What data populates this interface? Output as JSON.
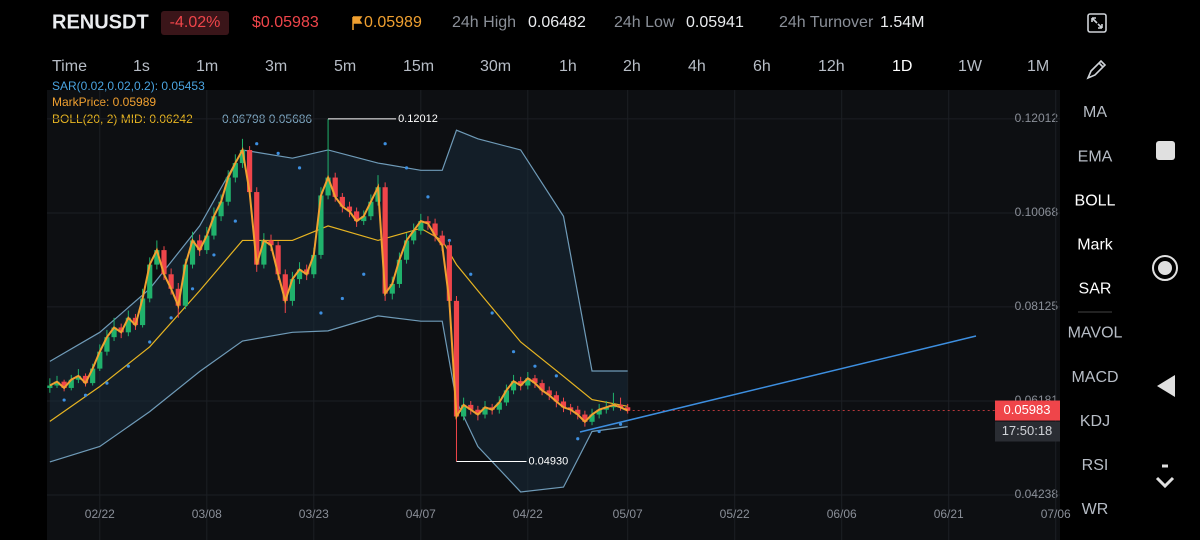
{
  "header": {
    "symbol": "RENUSDT",
    "change": "-4.02%",
    "last": "$0.05983",
    "mark": "0.05989",
    "high_label": "24h High",
    "high": "0.06482",
    "low_label": "24h Low",
    "low": "0.05941",
    "turnover_label": "24h Turnover",
    "turnover": "1.54M"
  },
  "timeframes": [
    "Time",
    "1s",
    "1m",
    "3m",
    "5m",
    "15m",
    "30m",
    "1h",
    "2h",
    "4h",
    "6h",
    "12h",
    "1D",
    "1W",
    "1M"
  ],
  "indicators": {
    "sar": "SAR(0.02,0.02,0.2): 0.05453",
    "mark": "MarkPrice: 0.05989",
    "boll": "BOLL(20, 2) MID: 0.06242",
    "boll_bands": "0.06798 0.05686"
  },
  "menu": [
    "MA",
    "EMA",
    "BOLL",
    "Mark",
    "SAR",
    "MAVOL",
    "MACD",
    "KDJ",
    "RSI",
    "WR"
  ],
  "chart_data": {
    "type": "candlestick",
    "xlim": [
      -0.4,
      141.6
    ],
    "ylim": [
      0.0403,
      0.1261
    ],
    "yticks": [
      0.12012,
      0.10068,
      0.08125,
      0.06181,
      0.04238
    ],
    "xticks": [
      {
        "value": 7,
        "label": "02/22"
      },
      {
        "value": 22,
        "label": "03/08"
      },
      {
        "value": 37,
        "label": "03/23"
      },
      {
        "value": 52,
        "label": "04/07"
      },
      {
        "value": 67,
        "label": "04/22"
      },
      {
        "value": 81,
        "label": "05/07"
      },
      {
        "value": 96,
        "label": "05/22"
      },
      {
        "value": 111,
        "label": "06/06"
      },
      {
        "value": 126,
        "label": "06/21"
      },
      {
        "value": 141,
        "label": "07/06"
      }
    ],
    "up_color": "#20b26c",
    "down_color": "#ef454a",
    "grid": true,
    "candles": [
      [
        0.0645,
        0.0665,
        0.0635,
        0.065
      ],
      [
        0.065,
        0.067,
        0.0645,
        0.0658
      ],
      [
        0.0658,
        0.0662,
        0.0638,
        0.0645
      ],
      [
        0.0645,
        0.0672,
        0.064,
        0.0662
      ],
      [
        0.0662,
        0.0684,
        0.0655,
        0.067
      ],
      [
        0.067,
        0.0675,
        0.0648,
        0.0655
      ],
      [
        0.0655,
        0.0695,
        0.065,
        0.0685
      ],
      [
        0.0685,
        0.0735,
        0.068,
        0.072
      ],
      [
        0.072,
        0.0765,
        0.0712,
        0.075
      ],
      [
        0.075,
        0.079,
        0.0742,
        0.077
      ],
      [
        0.077,
        0.0778,
        0.0748,
        0.076
      ],
      [
        0.076,
        0.0805,
        0.0752,
        0.079
      ],
      [
        0.079,
        0.0798,
        0.0765,
        0.0775
      ],
      [
        0.0775,
        0.085,
        0.077,
        0.083
      ],
      [
        0.083,
        0.0915,
        0.0822,
        0.09
      ],
      [
        0.09,
        0.095,
        0.089,
        0.093
      ],
      [
        0.093,
        0.0938,
        0.0868,
        0.088
      ],
      [
        0.088,
        0.0892,
        0.0838,
        0.085
      ],
      [
        0.085,
        0.0862,
        0.079,
        0.0815
      ],
      [
        0.0815,
        0.0912,
        0.0808,
        0.09
      ],
      [
        0.09,
        0.0968,
        0.0892,
        0.095
      ],
      [
        0.095,
        0.0962,
        0.0918,
        0.093
      ],
      [
        0.093,
        0.0978,
        0.0922,
        0.096
      ],
      [
        0.096,
        0.1018,
        0.0952,
        0.1
      ],
      [
        0.1,
        0.1045,
        0.099,
        0.103
      ],
      [
        0.103,
        0.1095,
        0.1022,
        0.108
      ],
      [
        0.108,
        0.1128,
        0.107,
        0.111
      ],
      [
        0.111,
        0.116,
        0.11,
        0.1137
      ],
      [
        0.1137,
        0.1145,
        0.104,
        0.105
      ],
      [
        0.105,
        0.106,
        0.0885,
        0.09
      ],
      [
        0.09,
        0.0965,
        0.0892,
        0.095
      ],
      [
        0.095,
        0.0962,
        0.0928,
        0.094
      ],
      [
        0.094,
        0.0948,
        0.0868,
        0.088
      ],
      [
        0.088,
        0.089,
        0.08,
        0.0825
      ],
      [
        0.0825,
        0.0885,
        0.0815,
        0.087
      ],
      [
        0.087,
        0.0905,
        0.086,
        0.089
      ],
      [
        0.089,
        0.09,
        0.0868,
        0.088
      ],
      [
        0.088,
        0.0935,
        0.0872,
        0.092
      ],
      [
        0.092,
        0.106,
        0.0912,
        0.1043
      ],
      [
        0.1043,
        0.12012,
        0.1035,
        0.108
      ],
      [
        0.108,
        0.109,
        0.103,
        0.104
      ],
      [
        0.104,
        0.1048,
        0.1008,
        0.102
      ],
      [
        0.102,
        0.103,
        0.0998,
        0.101
      ],
      [
        0.101,
        0.1018,
        0.0978,
        0.099
      ],
      [
        0.099,
        0.1012,
        0.0982,
        0.1
      ],
      [
        0.1,
        0.1045,
        0.0992,
        0.103
      ],
      [
        0.103,
        0.1085,
        0.1022,
        0.106
      ],
      [
        0.106,
        0.107,
        0.0825,
        0.084
      ],
      [
        0.084,
        0.0875,
        0.0828,
        0.086
      ],
      [
        0.086,
        0.0925,
        0.0852,
        0.091
      ],
      [
        0.091,
        0.0965,
        0.0902,
        0.095
      ],
      [
        0.095,
        0.0985,
        0.0942,
        0.097
      ],
      [
        0.097,
        0.1005,
        0.0962,
        0.099
      ],
      [
        0.099,
        0.1,
        0.0972,
        0.0985
      ],
      [
        0.0985,
        0.0995,
        0.0948,
        0.096
      ],
      [
        0.096,
        0.097,
        0.0928,
        0.094
      ],
      [
        0.094,
        0.095,
        0.0812,
        0.0825
      ],
      [
        0.0825,
        0.0835,
        0.0493,
        0.0586
      ],
      [
        0.0586,
        0.0625,
        0.0578,
        0.061
      ],
      [
        0.061,
        0.0618,
        0.059,
        0.06
      ],
      [
        0.06,
        0.0608,
        0.0578,
        0.059
      ],
      [
        0.059,
        0.0618,
        0.0582,
        0.0605
      ],
      [
        0.0605,
        0.0612,
        0.059,
        0.06
      ],
      [
        0.06,
        0.0628,
        0.0592,
        0.0615
      ],
      [
        0.0615,
        0.0652,
        0.0608,
        0.064
      ],
      [
        0.064,
        0.0672,
        0.0632,
        0.0659
      ],
      [
        0.0659,
        0.0668,
        0.064,
        0.065
      ],
      [
        0.065,
        0.0678,
        0.0642,
        0.0665
      ],
      [
        0.0665,
        0.0672,
        0.0645,
        0.0655
      ],
      [
        0.0655,
        0.0662,
        0.063,
        0.064
      ],
      [
        0.064,
        0.0648,
        0.062,
        0.063
      ],
      [
        0.063,
        0.0638,
        0.0605,
        0.0617
      ],
      [
        0.0617,
        0.0625,
        0.0595,
        0.0605
      ],
      [
        0.0605,
        0.0612,
        0.059,
        0.06
      ],
      [
        0.06,
        0.0608,
        0.058,
        0.059
      ],
      [
        0.059,
        0.0598,
        0.0565,
        0.0575
      ],
      [
        0.0575,
        0.0602,
        0.0568,
        0.059
      ],
      [
        0.059,
        0.0612,
        0.0582,
        0.06
      ],
      [
        0.06,
        0.0618,
        0.0592,
        0.0605
      ],
      [
        0.0605,
        0.0635,
        0.0598,
        0.061
      ],
      [
        0.061,
        0.0625,
        0.0598,
        0.0605
      ],
      [
        0.0605,
        0.0612,
        0.0592,
        0.05983
      ]
    ],
    "boll": {
      "x": [
        0,
        7,
        14,
        21,
        27,
        34,
        39,
        46,
        52,
        55,
        57,
        60,
        66,
        72,
        76,
        81
      ],
      "upper": [
        0.07,
        0.076,
        0.085,
        0.098,
        0.1137,
        0.112,
        0.1137,
        0.111,
        0.1095,
        0.1095,
        0.1178,
        0.116,
        0.1137,
        0.1,
        0.068,
        0.068
      ],
      "mid": [
        0.0576,
        0.0648,
        0.073,
        0.0846,
        0.095,
        0.095,
        0.098,
        0.095,
        0.0975,
        0.095,
        0.09,
        0.0846,
        0.074,
        0.0669,
        0.0621,
        0.0607
      ],
      "lower": [
        0.0492,
        0.0524,
        0.0596,
        0.0679,
        0.0742,
        0.076,
        0.0763,
        0.0794,
        0.0783,
        0.0783,
        0.0617,
        0.0524,
        0.043,
        0.044,
        0.0555,
        0.0565
      ]
    },
    "sar": {
      "x": [
        2,
        5,
        8,
        11,
        14,
        17,
        20,
        23,
        26,
        29,
        32,
        35,
        38,
        41,
        44,
        47,
        50,
        53,
        56,
        59,
        62,
        65,
        68,
        71,
        74,
        77,
        80
      ],
      "values": [
        0.062,
        0.063,
        0.0655,
        0.069,
        0.074,
        0.079,
        0.085,
        0.092,
        0.099,
        0.115,
        0.113,
        0.11,
        0.08,
        0.083,
        0.088,
        0.115,
        0.11,
        0.104,
        0.095,
        0.088,
        0.08,
        0.072,
        0.069,
        0.067,
        0.054,
        0.0555,
        0.057
      ]
    },
    "high_marker": {
      "x": 39,
      "value": 0.12012
    },
    "low_marker": {
      "x": 57,
      "value": 0.0493,
      "label": "0.04930"
    },
    "last_price": 0.05983,
    "countdown": "17:50:18"
  }
}
